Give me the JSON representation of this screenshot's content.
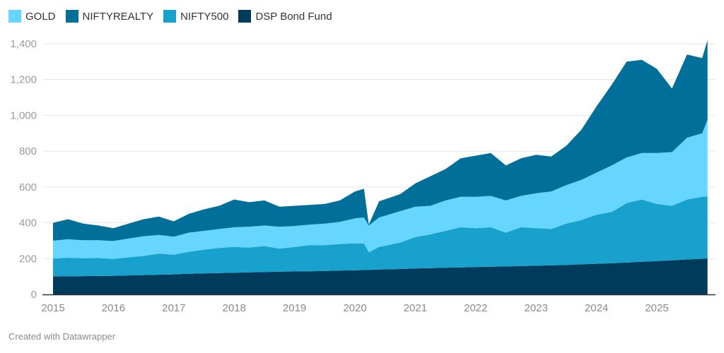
{
  "credit": "Created with Datawrapper",
  "chart_data": {
    "type": "area",
    "stacked": true,
    "title": "",
    "xlabel": "",
    "ylabel": "",
    "xlim": [
      2015.0,
      2025.84
    ],
    "ylim": [
      0,
      1450
    ],
    "grid": true,
    "legend_position": "top-left",
    "y_ticks": [
      0,
      200,
      400,
      600,
      800,
      1000,
      1200,
      1400
    ],
    "y_tick_labels": [
      "0",
      "200",
      "400",
      "600",
      "800",
      "1,000",
      "1,200",
      "1,400"
    ],
    "x_ticks": [
      2015,
      2016,
      2017,
      2018,
      2019,
      2020,
      2021,
      2022,
      2023,
      2024,
      2025
    ],
    "x_tick_labels": [
      "2015",
      "2016",
      "2017",
      "2018",
      "2019",
      "2020",
      "2021",
      "2022",
      "2023",
      "2024",
      "2025"
    ],
    "stack_order_bottom_to_top": [
      "DSP Bond Fund",
      "NIFTY500",
      "GOLD",
      "NIFTYREALTY"
    ],
    "legend": [
      {
        "name": "GOLD",
        "color": "#66d5ff"
      },
      {
        "name": "NIFTYREALTY",
        "color": "#006f99"
      },
      {
        "name": "NIFTY500",
        "color": "#18a1cd"
      },
      {
        "name": "DSP Bond Fund",
        "color": "#003b5c"
      }
    ],
    "x": [
      2015.0,
      2015.25,
      2015.5,
      2015.75,
      2016.0,
      2016.25,
      2016.5,
      2016.75,
      2017.0,
      2017.25,
      2017.5,
      2017.75,
      2018.0,
      2018.25,
      2018.5,
      2018.75,
      2019.0,
      2019.25,
      2019.5,
      2019.75,
      2020.0,
      2020.15,
      2020.23,
      2020.4,
      2020.75,
      2021.0,
      2021.25,
      2021.5,
      2021.75,
      2022.0,
      2022.25,
      2022.5,
      2022.75,
      2023.0,
      2023.25,
      2023.5,
      2023.75,
      2024.0,
      2024.25,
      2024.5,
      2024.75,
      2025.0,
      2025.25,
      2025.5,
      2025.75,
      2025.84
    ],
    "series": [
      {
        "name": "DSP Bond Fund",
        "color": "#003b5c",
        "values": [
          100,
          101,
          102,
          103,
          104,
          106,
          108,
          110,
          112,
          115,
          117,
          119,
          121,
          123,
          125,
          127,
          128,
          129,
          131,
          133,
          135,
          136,
          137,
          139,
          142,
          145,
          147,
          149,
          151,
          153,
          155,
          156,
          158,
          160,
          162,
          165,
          168,
          171,
          174,
          178,
          182,
          186,
          190,
          195,
          199,
          201
        ]
      },
      {
        "name": "NIFTY500",
        "color": "#18a1cd",
        "values": [
          100,
          104,
          100,
          100,
          94,
          101,
          107,
          118,
          110,
          123,
          133,
          141,
          144,
          139,
          145,
          128,
          137,
          146,
          144,
          149,
          150,
          149,
          98,
          126,
          148,
          175,
          188,
          206,
          224,
          217,
          220,
          189,
          217,
          210,
          203,
          230,
          247,
          274,
          286,
          332,
          348,
          319,
          305,
          335,
          346,
          347
        ]
      },
      {
        "name": "GOLD",
        "color": "#66d5ff",
        "values": [
          100,
          103,
          101,
          100,
          100,
          105,
          110,
          104,
          100,
          107,
          105,
          105,
          110,
          116,
          115,
          123,
          117,
          115,
          120,
          123,
          140,
          145,
          150,
          165,
          175,
          170,
          160,
          170,
          170,
          175,
          175,
          180,
          175,
          195,
          210,
          215,
          225,
          235,
          260,
          255,
          260,
          285,
          300,
          345,
          355,
          427
        ]
      },
      {
        "name": "NIFTYREALTY",
        "color": "#006f99",
        "values": [
          100,
          112,
          92,
          82,
          72,
          83,
          95,
          103,
          86,
          105,
          120,
          130,
          155,
          137,
          140,
          112,
          113,
          110,
          110,
          120,
          150,
          160,
          5,
          90,
          95,
          130,
          165,
          175,
          215,
          230,
          240,
          195,
          210,
          215,
          195,
          220,
          280,
          370,
          450,
          535,
          520,
          470,
          355,
          465,
          420,
          445
        ]
      }
    ]
  }
}
